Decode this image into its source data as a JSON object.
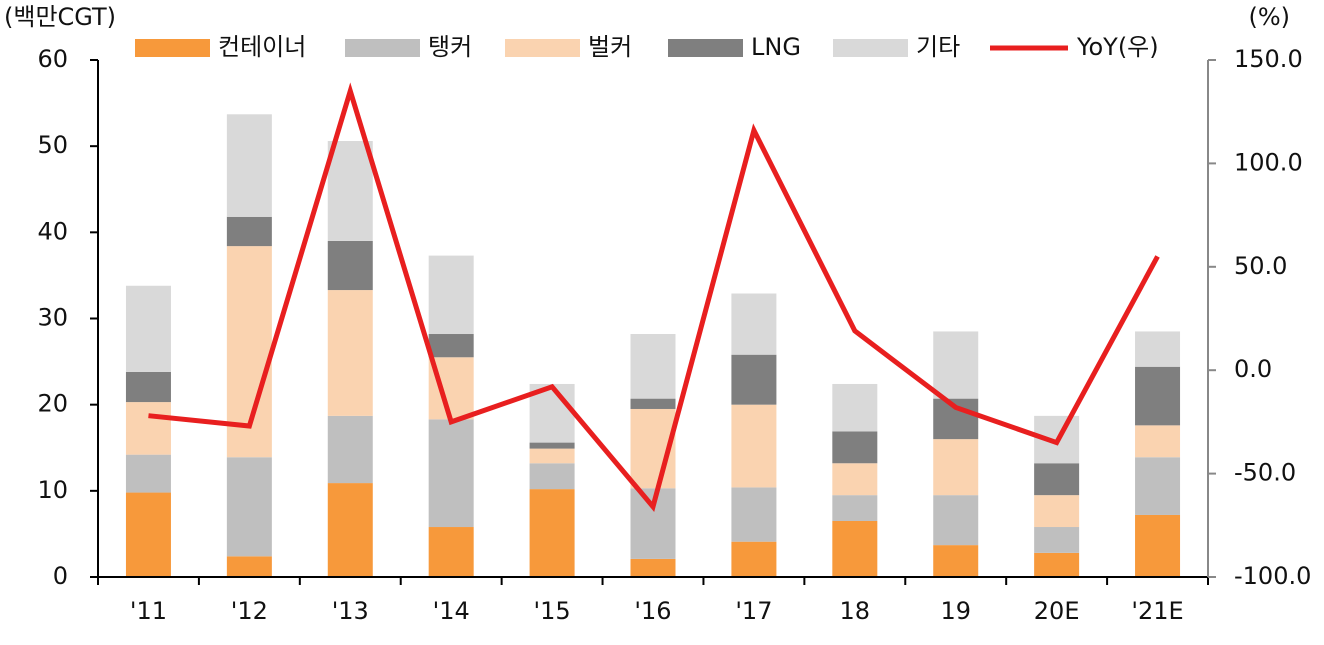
{
  "chart_data": {
    "type": "bar",
    "y_axis_label": "(백만CGT)",
    "y2_axis_label": "(%)",
    "categories": [
      "'11",
      "'12",
      "'13",
      "'14",
      "'15",
      "'16",
      "'17",
      "18",
      "19",
      "20E",
      "'21E"
    ],
    "series": [
      {
        "name": "컨테이너",
        "color": "#f7993b",
        "values": [
          9.8,
          2.4,
          10.9,
          5.8,
          10.2,
          2.1,
          4.1,
          6.5,
          3.7,
          2.8,
          7.2
        ]
      },
      {
        "name": "탱커",
        "color": "#bfbfbf",
        "values": [
          4.4,
          11.5,
          7.8,
          12.5,
          3.0,
          8.2,
          6.3,
          3.0,
          5.8,
          3.0,
          6.7
        ]
      },
      {
        "name": "벌커",
        "color": "#fad3b0",
        "values": [
          6.1,
          24.5,
          14.6,
          7.2,
          1.7,
          9.2,
          9.6,
          3.7,
          6.5,
          3.7,
          3.7
        ]
      },
      {
        "name": "LNG",
        "color": "#7f7f7f",
        "values": [
          3.5,
          3.4,
          5.7,
          2.7,
          0.7,
          1.2,
          5.8,
          3.7,
          4.7,
          3.7,
          6.8
        ]
      },
      {
        "name": "기타",
        "color": "#d9d9d9",
        "values": [
          10.0,
          11.9,
          11.6,
          9.1,
          6.8,
          7.5,
          7.1,
          5.5,
          7.8,
          5.5,
          4.1
        ]
      },
      {
        "name": "YoY(우)",
        "color": "#e81f1f",
        "type": "line",
        "axis": "y2",
        "values": [
          -22,
          -27,
          135,
          -25,
          -8,
          -66,
          116,
          19,
          -18,
          -35,
          55
        ]
      }
    ],
    "ylim": [
      0,
      60
    ],
    "yticks": [
      0,
      10,
      20,
      30,
      40,
      50,
      60
    ],
    "y2lim": [
      -100,
      150
    ],
    "y2ticks": [
      {
        "value": -100,
        "label": "-100.0"
      },
      {
        "value": -50,
        "label": "-50.0"
      },
      {
        "value": 0,
        "label": "0.0"
      },
      {
        "value": 50,
        "label": "50.0"
      },
      {
        "value": 100,
        "label": "100.0"
      },
      {
        "value": 150,
        "label": "150.0"
      }
    ],
    "stacked": true
  }
}
